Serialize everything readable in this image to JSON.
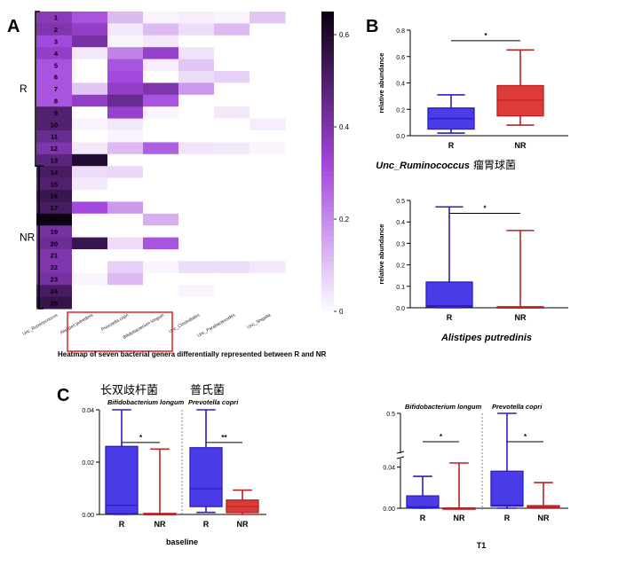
{
  "panels": {
    "A": "A",
    "B": "B",
    "C": "C"
  },
  "chart_data": [
    {
      "id": "heatmap",
      "type": "heatmap",
      "title": "Heatmap of seven bacterial genera differentially represented between R and NR",
      "columns": [
        "Unc_Ruminococcus",
        "Alistipes putredinis",
        "Prevotella copri",
        "Bifidobacterium longum",
        "Unc_Clostridiales",
        "Unc_Parabacteroides",
        "Unc_Shigella"
      ],
      "rows": [
        "1",
        "2",
        "3",
        "4",
        "5",
        "6",
        "7",
        "8",
        "9",
        "10",
        "11",
        "12",
        "13",
        "14",
        "15",
        "16",
        "17",
        "18",
        "19",
        "20",
        "21",
        "22",
        "23",
        "24",
        "25"
      ],
      "groups": [
        {
          "label": "R",
          "from": 1,
          "to": 13
        },
        {
          "label": "NR",
          "from": 14,
          "to": 25
        }
      ],
      "colorbar": {
        "ticks": [
          "0.6",
          "0.4",
          "0.2",
          "0"
        ],
        "range": [
          0,
          0.65
        ]
      },
      "highlight_columns": [
        "Alistipes putredinis",
        "Prevotella copri",
        "Bifidobacterium longum"
      ],
      "values": [
        [
          0.38,
          0.3,
          0.12,
          0.02,
          0.03,
          0.02,
          0.1
        ],
        [
          0.4,
          0.36,
          0.04,
          0.12,
          0.06,
          0.12,
          0.0
        ],
        [
          0.32,
          0.42,
          0.02,
          0.04,
          0.0,
          0.0,
          0.0
        ],
        [
          0.36,
          0.04,
          0.22,
          0.35,
          0.05,
          0.0,
          0.0
        ],
        [
          0.3,
          0.0,
          0.3,
          0.03,
          0.1,
          0.0,
          0.0
        ],
        [
          0.3,
          0.0,
          0.32,
          0.0,
          0.06,
          0.08,
          0.0
        ],
        [
          0.3,
          0.1,
          0.36,
          0.4,
          0.18,
          0.0,
          0.0
        ],
        [
          0.3,
          0.36,
          0.45,
          0.3,
          0.0,
          0.0,
          0.0
        ],
        [
          0.5,
          0.0,
          0.35,
          0.02,
          0.0,
          0.04,
          0.0
        ],
        [
          0.5,
          0.02,
          0.04,
          0.0,
          0.0,
          0.0,
          0.03
        ],
        [
          0.45,
          0.0,
          0.02,
          0.0,
          0.0,
          0.0,
          0.0
        ],
        [
          0.4,
          0.04,
          0.12,
          0.28,
          0.05,
          0.04,
          0.02
        ],
        [
          0.48,
          0.6,
          0.0,
          0.0,
          0.0,
          0.0,
          0.0
        ],
        [
          0.52,
          0.06,
          0.07,
          0.0,
          0.0,
          0.0,
          0.0
        ],
        [
          0.5,
          0.04,
          0.0,
          0.0,
          0.0,
          0.0,
          0.0
        ],
        [
          0.55,
          0.0,
          0.0,
          0.0,
          0.0,
          0.0,
          0.0
        ],
        [
          0.52,
          0.32,
          0.18,
          0.0,
          0.0,
          0.0,
          0.0
        ],
        [
          0.65,
          0.0,
          0.0,
          0.14,
          0.0,
          0.0,
          0.0
        ],
        [
          0.42,
          0.0,
          0.0,
          0.0,
          0.0,
          0.0,
          0.0
        ],
        [
          0.44,
          0.55,
          0.06,
          0.3,
          0.0,
          0.0,
          0.0
        ],
        [
          0.4,
          0.0,
          0.0,
          0.0,
          0.0,
          0.0,
          0.0
        ],
        [
          0.4,
          0.0,
          0.08,
          0.02,
          0.06,
          0.06,
          0.04
        ],
        [
          0.42,
          0.02,
          0.12,
          0.0,
          0.0,
          0.0,
          0.0
        ],
        [
          0.52,
          0.0,
          0.0,
          0.0,
          0.02,
          0.0,
          0.0
        ],
        [
          0.56,
          0.0,
          0.0,
          0.0,
          0.0,
          0.0,
          0.0
        ]
      ]
    },
    {
      "id": "box-ruminococcus",
      "type": "box",
      "ylabel": "relative abundance",
      "yticks": [
        "0.0",
        "0.2",
        "0.4",
        "0.6",
        "0.8"
      ],
      "ylim": [
        0,
        0.8
      ],
      "categories": [
        "R",
        "NR"
      ],
      "caption": "Unc_Ruminococcus",
      "caption_cn": "瘤胃球菌",
      "boxes": [
        {
          "group": "R",
          "color": "#3333dd",
          "min": 0.02,
          "q1": 0.05,
          "median": 0.13,
          "q3": 0.21,
          "max": 0.31
        },
        {
          "group": "NR",
          "color": "#cc3333",
          "min": 0.08,
          "q1": 0.15,
          "median": 0.27,
          "q3": 0.38,
          "max": 0.65
        }
      ],
      "sig": [
        {
          "from": "R",
          "to": "NR",
          "y": 0.72,
          "label": "*"
        }
      ]
    },
    {
      "id": "box-alistipes",
      "type": "box",
      "ylabel": "relative abundance",
      "yticks": [
        "0.0",
        "0.1",
        "0.2",
        "0.3",
        "0.4",
        "0.5"
      ],
      "ylim": [
        0,
        0.5
      ],
      "categories": [
        "R",
        "NR"
      ],
      "caption": "Alistipes putredinis",
      "boxes": [
        {
          "group": "R",
          "color": "#3333dd",
          "min": 0.0,
          "q1": 0.005,
          "median": 0.01,
          "q3": 0.12,
          "max": 0.47
        },
        {
          "group": "NR",
          "color": "#cc3333",
          "min": 0.0,
          "q1": 0.0,
          "median": 0.003,
          "q3": 0.005,
          "max": 0.36
        }
      ],
      "sig": [
        {
          "from": "R",
          "to": "NR",
          "y": 0.44,
          "label": "*"
        }
      ]
    },
    {
      "id": "box-baseline",
      "type": "box",
      "caption": "baseline",
      "yticks": [
        "0.00",
        "0.02",
        "0.04"
      ],
      "ylim": [
        0,
        0.04
      ],
      "categories": [
        "R",
        "NR",
        "R",
        "NR"
      ],
      "species": [
        {
          "name": "Bifidobacterium longum",
          "cn": "长双歧杆菌"
        },
        {
          "name": "Prevotella copri",
          "cn": "普氏菌"
        }
      ],
      "boxes": [
        {
          "group": "R",
          "color": "#3333dd",
          "min": 0.0,
          "q1": 0.0003,
          "median": 0.0035,
          "q3": 0.026,
          "max": 0.04
        },
        {
          "group": "NR",
          "color": "#cc3333",
          "min": 0.0,
          "q1": 0.0,
          "median": 0.0002,
          "q3": 0.0004,
          "max": 0.025
        },
        {
          "group": "R",
          "color": "#3333dd",
          "min": 0.0008,
          "q1": 0.003,
          "median": 0.0098,
          "q3": 0.0255,
          "max": 0.04
        },
        {
          "group": "NR",
          "color": "#cc3333",
          "min": 0.0,
          "q1": 0.0007,
          "median": 0.003,
          "q3": 0.0055,
          "max": 0.0093
        }
      ],
      "sig": [
        {
          "from": 0,
          "to": 1,
          "y": 0.0275,
          "label": "*"
        },
        {
          "from": 2,
          "to": 3,
          "y": 0.0275,
          "label": "**"
        }
      ]
    },
    {
      "id": "box-t1",
      "type": "box",
      "caption": "T1",
      "yticks": [
        "0.00",
        "0.04",
        "0.5"
      ],
      "axis_break": true,
      "categories": [
        "R",
        "NR",
        "R",
        "NR"
      ],
      "species": [
        {
          "name": "Bifidobacterium longum"
        },
        {
          "name": "Prevotella copri"
        }
      ],
      "boxes": [
        {
          "group": "R",
          "color": "#3333dd",
          "min": 0.0,
          "q1": 0.0005,
          "median": 0.0015,
          "q3": 0.012,
          "max": 0.031
        },
        {
          "group": "NR",
          "color": "#cc3333",
          "min": 0.0,
          "q1": 0.0,
          "median": 0.0001,
          "q3": 0.0003,
          "max": 0.044
        },
        {
          "group": "R",
          "color": "#3333dd",
          "min": 0.0,
          "q1": 0.002,
          "median": 0.003,
          "q3": 0.036,
          "max": 0.5
        },
        {
          "group": "NR",
          "color": "#cc3333",
          "min": 0.0,
          "q1": 0.0005,
          "median": 0.0015,
          "q3": 0.0025,
          "max": 0.025
        }
      ],
      "sig": [
        {
          "from": 0,
          "to": 1,
          "label": "*"
        },
        {
          "from": 2,
          "to": 3,
          "label": "*"
        }
      ]
    }
  ]
}
